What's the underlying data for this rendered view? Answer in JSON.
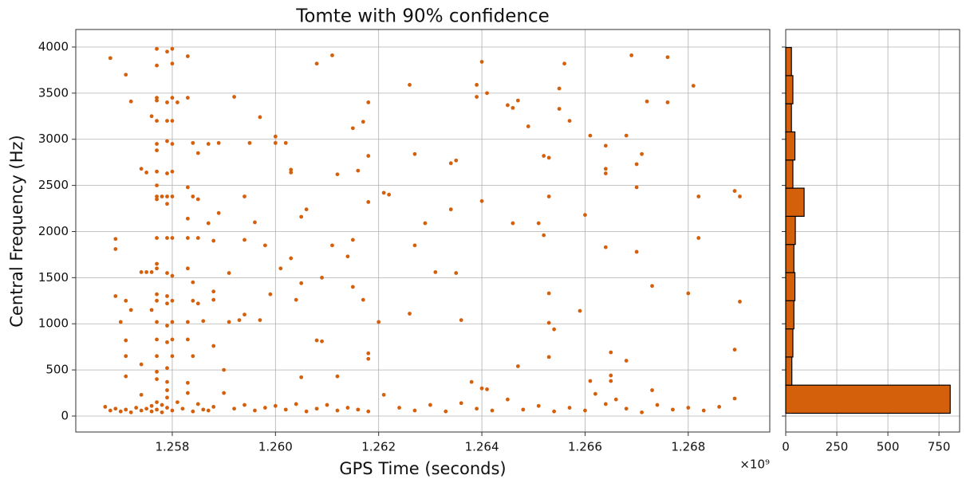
{
  "chart_data": [
    {
      "type": "scatter",
      "title": "Tomte with 90% confidence",
      "x_label": "GPS Time (seconds)",
      "y_label": "Central Frequency (Hz)",
      "x_offset_label": "×10⁹",
      "color": "#d5600c",
      "grid": true,
      "xlim": [
        1.25613,
        1.26958
      ],
      "ylim": [
        -173,
        4190
      ],
      "xticks": [
        1.258,
        {
          "value": 1.26,
          "label": "1.260"
        },
        1.262,
        1.264,
        1.266,
        1.268
      ],
      "yticks": [
        0,
        500,
        1000,
        1500,
        2000,
        2500,
        3000,
        3500,
        4000
      ],
      "x": [
        1.2568,
        1.2571,
        1.2572,
        1.2576,
        1.2569,
        1.2569,
        1.2569,
        1.257,
        1.2571,
        1.2571,
        1.2571,
        1.2571,
        1.2572,
        1.2574,
        1.2575,
        1.2574,
        1.2575,
        1.2576,
        1.2576,
        1.2574,
        1.2574,
        1.2577,
        1.2578,
        1.2577,
        1.2577,
        1.2577,
        1.2577,
        1.2577,
        1.2577,
        1.2577,
        1.2577,
        1.2577,
        1.2577,
        1.2577,
        1.2577,
        1.2577,
        1.2577,
        1.2577,
        1.2577,
        1.2577,
        1.2577,
        1.2577,
        1.2577,
        1.2579,
        1.2579,
        1.2579,
        1.2579,
        1.2579,
        1.2579,
        1.2579,
        1.2579,
        1.2579,
        1.2579,
        1.2579,
        1.2579,
        1.2579,
        1.2579,
        1.2579,
        1.2579,
        1.258,
        1.258,
        1.258,
        1.258,
        1.258,
        1.258,
        1.258,
        1.258,
        1.258,
        1.258,
        1.258,
        1.258,
        1.258,
        1.2581,
        1.2583,
        1.2583,
        1.2584,
        1.2584,
        1.2583,
        1.2583,
        1.2583,
        1.2583,
        1.2584,
        1.2584,
        1.2583,
        1.2583,
        1.2584,
        1.2583,
        1.2585,
        1.2585,
        1.2585,
        1.2585,
        1.2586,
        1.2587,
        1.2587,
        1.2588,
        1.2588,
        1.2588,
        1.2588,
        1.2589,
        1.2589,
        1.259,
        1.2591,
        1.2591,
        1.2593,
        1.2594,
        1.2592,
        1.2594,
        1.2594,
        1.2595,
        1.2597,
        1.2596,
        1.2597,
        1.2598,
        1.2599,
        1.26,
        1.26,
        1.2601,
        1.2602,
        1.2603,
        1.2604,
        1.2603,
        1.2603,
        1.2605,
        1.2606,
        1.2605,
        1.2605,
        1.2608,
        1.2609,
        1.2608,
        1.2609,
        1.2611,
        1.2611,
        1.2612,
        1.2612,
        1.2614,
        1.2615,
        1.2615,
        1.2615,
        1.2616,
        1.2617,
        1.2617,
        1.2618,
        1.2618,
        1.2618,
        1.2618,
        1.2618,
        1.262,
        1.2621,
        1.2622,
        1.2626,
        1.2626,
        1.2627,
        1.2627,
        1.2629,
        1.2631,
        1.2634,
        1.2634,
        1.2635,
        1.2635,
        1.2636,
        1.2638,
        1.2639,
        1.2639,
        1.264,
        1.2641,
        1.264,
        1.264,
        1.2641,
        1.2645,
        1.2646,
        1.2647,
        1.2646,
        1.2647,
        1.2649,
        1.2651,
        1.2652,
        1.2652,
        1.2653,
        1.2653,
        1.2653,
        1.2653,
        1.2654,
        1.2653,
        1.2655,
        1.2655,
        1.2656,
        1.2657,
        1.2659,
        1.266,
        1.2661,
        1.2661,
        1.2664,
        1.2664,
        1.2664,
        1.2664,
        1.2665,
        1.2665,
        1.2665,
        1.2668,
        1.2668,
        1.2669,
        1.267,
        1.267,
        1.267,
        1.2671,
        1.2672,
        1.2673,
        1.2673,
        1.2676,
        1.2676,
        1.268,
        1.2681,
        1.2682,
        1.2682,
        1.2689,
        1.2689,
        1.269,
        1.269,
        1.2567,
        1.2568,
        1.2569,
        1.257,
        1.2571,
        1.2572,
        1.2573,
        1.2574,
        1.2575,
        1.2576,
        1.2576,
        1.2577,
        1.2577,
        1.2578,
        1.2578,
        1.2579,
        1.2579,
        1.258,
        1.2581,
        1.2582,
        1.2583,
        1.2584,
        1.2585,
        1.2586,
        1.2587,
        1.2588,
        1.259,
        1.2592,
        1.2594,
        1.2596,
        1.2598,
        1.26,
        1.2602,
        1.2604,
        1.2606,
        1.2608,
        1.261,
        1.2612,
        1.2614,
        1.2616,
        1.2618,
        1.2621,
        1.2624,
        1.2627,
        1.263,
        1.2633,
        1.2636,
        1.2639,
        1.2642,
        1.2645,
        1.2648,
        1.2651,
        1.2654,
        1.2657,
        1.266,
        1.2662,
        1.2664,
        1.2666,
        1.2668,
        1.2671,
        1.2674,
        1.2677,
        1.268,
        1.2683,
        1.2686,
        1.2689
      ],
      "values": [
        3880,
        3700,
        3410,
        3250,
        1920,
        1810,
        1300,
        1020,
        1250,
        820,
        650,
        430,
        1150,
        2680,
        2640,
        1560,
        1560,
        1560,
        1150,
        560,
        230,
        2500,
        2380,
        3980,
        3800,
        3450,
        3420,
        3200,
        2950,
        2880,
        2650,
        2380,
        2350,
        1930,
        1650,
        1600,
        1320,
        1250,
        1020,
        830,
        650,
        480,
        400,
        3950,
        3400,
        3200,
        2980,
        2630,
        2380,
        2300,
        1930,
        1550,
        1300,
        1220,
        980,
        800,
        520,
        370,
        280,
        3980,
        3820,
        3450,
        3200,
        2950,
        2650,
        2380,
        1930,
        1520,
        1250,
        1020,
        830,
        650,
        3400,
        3900,
        3450,
        2960,
        2380,
        2480,
        2140,
        1930,
        1600,
        1450,
        1250,
        1020,
        830,
        650,
        360,
        2850,
        2350,
        1930,
        1220,
        1030,
        2950,
        2090,
        1900,
        1350,
        1260,
        760,
        2200,
        2960,
        500,
        1550,
        1020,
        1040,
        1100,
        3460,
        2380,
        1910,
        2960,
        3240,
        2100,
        1040,
        1850,
        1320,
        3030,
        2960,
        1600,
        2960,
        1710,
        1260,
        2640,
        2670,
        2160,
        2240,
        1440,
        420,
        3820,
        1500,
        820,
        810,
        3910,
        1850,
        2620,
        430,
        1730,
        1910,
        1400,
        3120,
        2660,
        3190,
        1260,
        3400,
        2820,
        2320,
        680,
        620,
        1020,
        2420,
        2400,
        3590,
        1110,
        2840,
        1850,
        2090,
        1560,
        2240,
        2740,
        2770,
        1550,
        1040,
        370,
        3460,
        3590,
        3840,
        3500,
        2330,
        300,
        290,
        3370,
        3340,
        3420,
        2090,
        540,
        3140,
        2090,
        2820,
        1960,
        2800,
        2380,
        1330,
        1010,
        940,
        640,
        3550,
        3330,
        3820,
        3200,
        1140,
        2180,
        3040,
        380,
        2680,
        2630,
        2930,
        1830,
        440,
        380,
        690,
        3040,
        600,
        3910,
        2730,
        2480,
        1780,
        2840,
        3410,
        1410,
        280,
        3890,
        3400,
        1330,
        3580,
        2380,
        1930,
        2440,
        720,
        1240,
        2380,
        100,
        60,
        80,
        50,
        70,
        40,
        90,
        60,
        80,
        110,
        50,
        150,
        70,
        120,
        40,
        200,
        90,
        60,
        150,
        80,
        250,
        50,
        130,
        70,
        60,
        100,
        250,
        80,
        120,
        60,
        90,
        110,
        70,
        130,
        50,
        80,
        120,
        60,
        90,
        70,
        50,
        230,
        90,
        60,
        120,
        50,
        140,
        80,
        60,
        180,
        70,
        110,
        50,
        90,
        60,
        240,
        130,
        180,
        80,
        40,
        120,
        70,
        90,
        60,
        100,
        190
      ]
    },
    {
      "type": "histogram",
      "orientation": "horizontal",
      "color": "#d5600c",
      "grid": true,
      "xlim": [
        0,
        851
      ],
      "xticks": [
        0,
        250,
        500,
        750
      ],
      "ylim": [
        -173,
        4190
      ],
      "yticks": [
        0,
        500,
        1000,
        1500,
        2000,
        2500,
        3000,
        3500,
        4000
      ],
      "bins": [
        30,
        335,
        640,
        945,
        1250,
        1555,
        1860,
        2165,
        2470,
        2775,
        3080,
        3385,
        3690,
        3995
      ],
      "values": [
        805,
        30,
        35,
        40,
        45,
        40,
        47,
        90,
        35,
        45,
        28,
        35,
        28
      ]
    }
  ]
}
